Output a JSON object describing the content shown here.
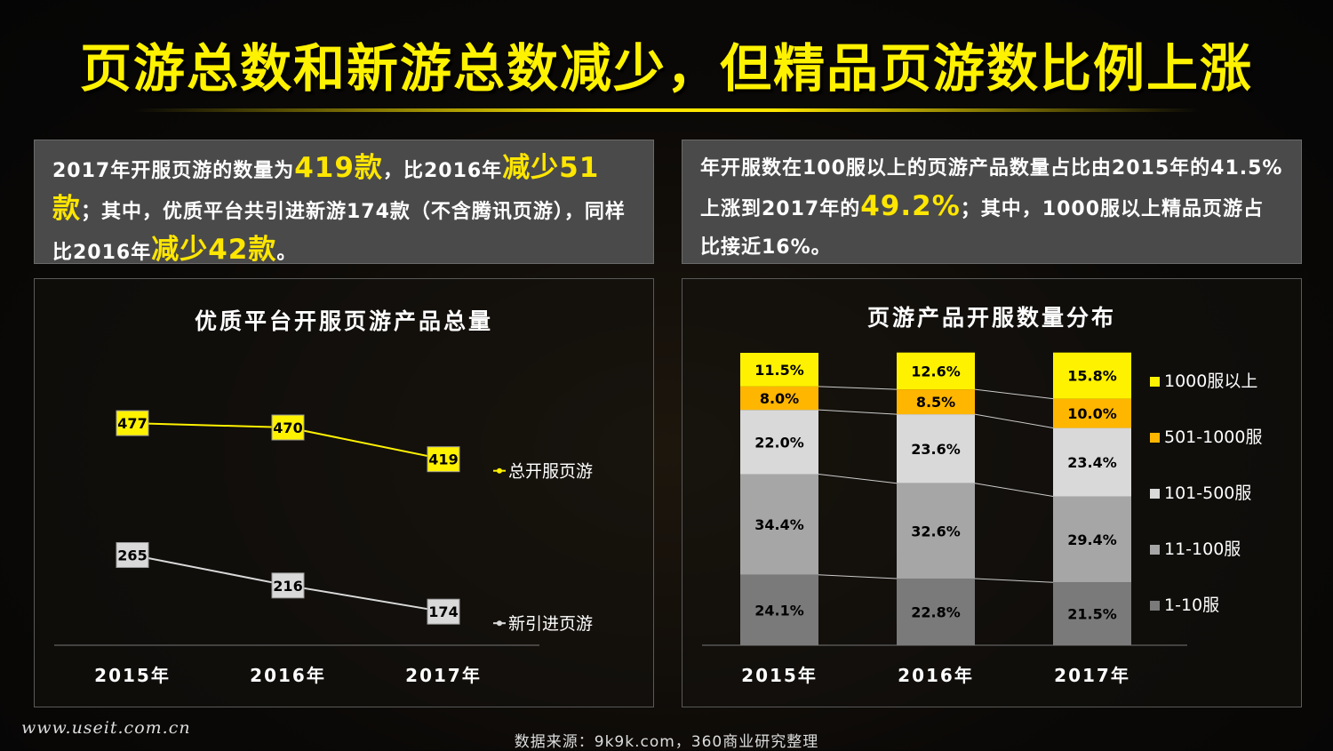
{
  "title": "页游总数和新游总数减少，但精品页游数比例上涨",
  "left_box": {
    "p1": "2017年开服页游的数量为",
    "h1": "419款",
    "p2": "，比2016年",
    "h2": "减少51款",
    "p3": "；其中，优质平台共引进新游174款（不含腾讯页游），同样比2016年",
    "h3": "减少42款",
    "p4": "。"
  },
  "right_box": {
    "p1": "年开服数在100服以上的页游产品数量占比由2015年的41.5%上涨到2017年的",
    "h1": "49.2%",
    "p2": "；其中，1000服以上精品页游占比接近16%。"
  },
  "source": "数据来源：9k9k.com，360商业研究整理",
  "watermark": "www.useit.com.cn",
  "colors": {
    "yellow": "#fff200",
    "orange": "#ffb600",
    "light": "#d9d9d9",
    "mid": "#a6a6a6",
    "dark": "#7a7a7a"
  },
  "chart_data": [
    {
      "type": "line",
      "title": "优质平台开服页游产品总量",
      "categories": [
        "2015年",
        "2016年",
        "2017年"
      ],
      "series": [
        {
          "name": "总开服页游",
          "values": [
            477,
            470,
            419
          ],
          "color": "#fff200"
        },
        {
          "name": "新引进页游",
          "values": [
            265,
            216,
            174
          ],
          "color": "#d9d9d9"
        }
      ],
      "ylim": [
        120,
        520
      ],
      "grid": false,
      "legend": "right"
    },
    {
      "type": "bar",
      "stacked": true,
      "percent": true,
      "title": "页游产品开服数量分布",
      "categories": [
        "2015年",
        "2016年",
        "2017年"
      ],
      "series": [
        {
          "name": "1-10服",
          "values": [
            24.1,
            22.8,
            21.5
          ],
          "labels": [
            "24.1%",
            "22.8%",
            "21.5%"
          ],
          "color": "#7a7a7a"
        },
        {
          "name": "11-100服",
          "values": [
            34.4,
            32.6,
            29.4
          ],
          "labels": [
            "34.4%",
            "32.6%",
            "29.4%"
          ],
          "color": "#a6a6a6"
        },
        {
          "name": "101-500服",
          "values": [
            22.0,
            23.6,
            23.4
          ],
          "labels": [
            "22.0%",
            "23.6%",
            "23.4%"
          ],
          "color": "#d9d9d9"
        },
        {
          "name": "501-1000服",
          "values": [
            8.0,
            8.5,
            10.0
          ],
          "labels": [
            "8.0%",
            "8.5%",
            "10.0%"
          ],
          "color": "#ffb600"
        },
        {
          "name": "1000服以上",
          "values": [
            11.5,
            12.6,
            15.8
          ],
          "labels": [
            "11.5%",
            "12.6%",
            "15.8%"
          ],
          "color": "#fff200"
        }
      ],
      "ylim": [
        0,
        100
      ],
      "legend": "right"
    }
  ]
}
